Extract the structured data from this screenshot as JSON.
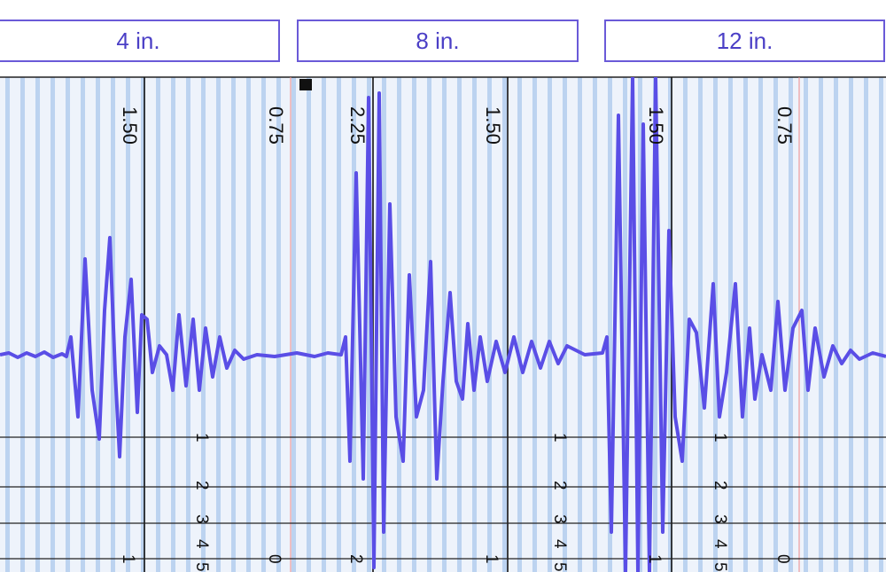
{
  "tabs": [
    "4 in.",
    "8 in.",
    "12 in."
  ],
  "scale_labels": [
    "1.50",
    "0.75",
    "2.25",
    "1.50",
    "1.50",
    "0.75"
  ],
  "row_labels": [
    "1",
    "2",
    "3",
    "4",
    "5"
  ],
  "bottom_labels": [
    "1",
    "0",
    "2",
    "1",
    "1",
    "0"
  ]
}
